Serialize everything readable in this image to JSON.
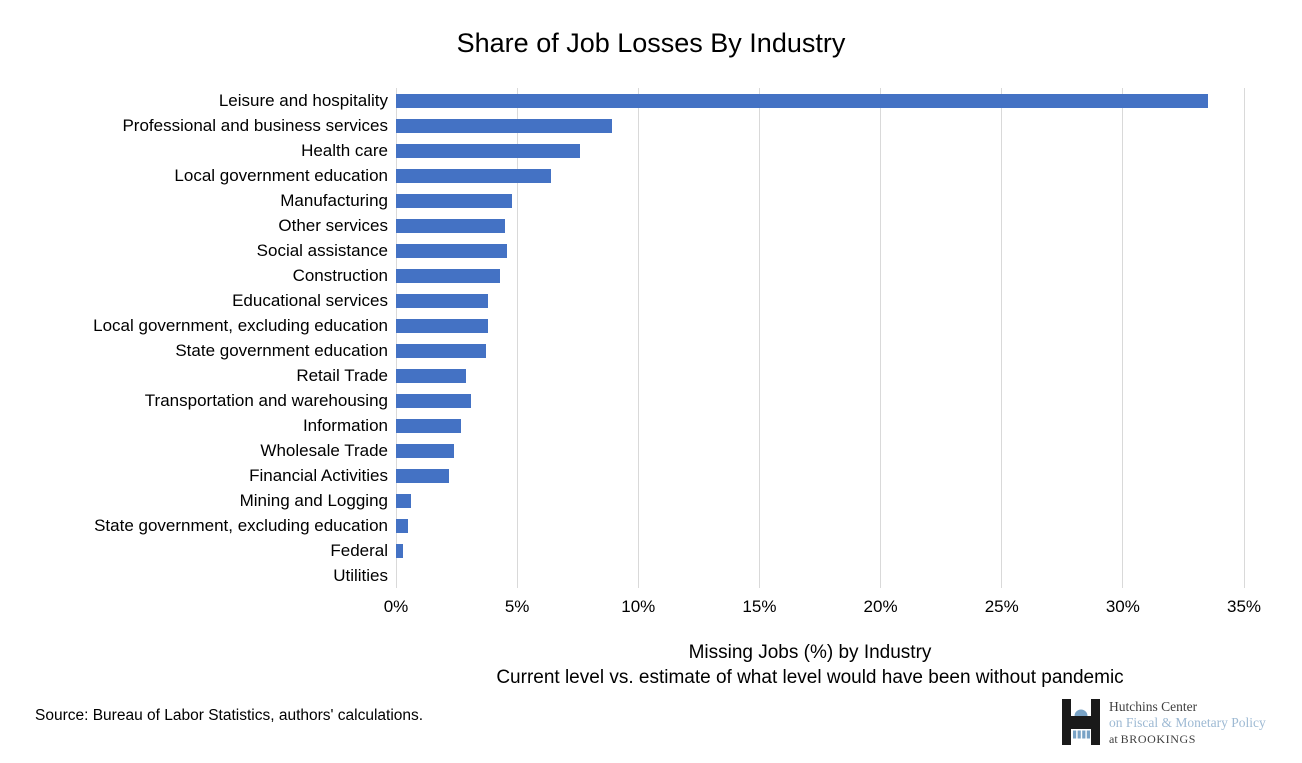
{
  "title": "Share of Job Losses By Industry",
  "chart_data": {
    "type": "bar",
    "orientation": "horizontal",
    "categories": [
      "Leisure and hospitality",
      "Professional and business services",
      "Health care",
      "Local government education",
      "Manufacturing",
      "Other services",
      "Social assistance",
      "Construction",
      "Educational services",
      "Local government, excluding education",
      "State government education",
      "Retail Trade",
      "Transportation and warehousing",
      "Information",
      "Wholesale Trade",
      "Financial Activities",
      "Mining and Logging",
      "State government, excluding education",
      "Federal",
      "Utilities"
    ],
    "values": [
      33.5,
      8.9,
      7.6,
      6.4,
      4.8,
      4.5,
      4.6,
      4.3,
      3.8,
      3.8,
      3.7,
      2.9,
      3.1,
      2.7,
      2.4,
      2.2,
      0.6,
      0.5,
      0.3,
      0
    ],
    "x_ticks": [
      "0%",
      "5%",
      "10%",
      "15%",
      "20%",
      "25%",
      "30%",
      "35%"
    ],
    "xlim": [
      0,
      35
    ],
    "grid": true,
    "legend": false,
    "bar_color": "#4472C4",
    "gridline_color": "#D9D9D9",
    "xlabel_line1": "Missing Jobs (%) by Industry",
    "xlabel_line2": "Current level vs. estimate of what level would have been without pandemic"
  },
  "footer": {
    "source": "Source: Bureau of Labor Statistics, authors' calculations."
  },
  "logo": {
    "line1": "Hutchins Center",
    "line2": "on Fiscal & Monetary Policy",
    "line3_prefix": "at ",
    "line3_brand": "BROOKINGS",
    "colors": {
      "dark": "#3f3f3f",
      "light_blue": "#9db9d3",
      "mark_black": "#1a1a1a",
      "mark_blue": "#79a3c6"
    }
  },
  "icons": {
    "logo_mark": "hutchins-h-monument-icon"
  }
}
